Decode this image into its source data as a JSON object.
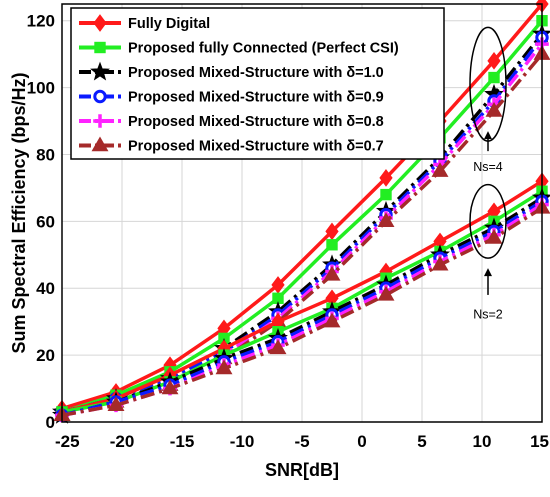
{
  "chart_data": {
    "type": "line",
    "xlabel": "SNR[dB]",
    "ylabel": "Sum Spectral Efficiency (bps/Hz)",
    "xlim": [
      -25,
      15
    ],
    "ylim": [
      0,
      125
    ],
    "xticks": [
      -25,
      -20,
      -15,
      -10,
      -5,
      0,
      5,
      10,
      15
    ],
    "yticks": [
      0,
      20,
      40,
      60,
      80,
      100,
      120
    ],
    "grid": true,
    "legend_position": "top-left",
    "x": [
      -25,
      -20.5,
      -16,
      -11.5,
      -7,
      -2.5,
      2,
      6.5,
      11,
      15
    ],
    "series": [
      {
        "name": "Fully Digital",
        "color": "#ff1a1a",
        "marker": "diamond",
        "dash": "solid",
        "group": "Ns=4",
        "values": [
          4,
          9,
          17,
          28,
          41,
          57,
          73,
          90,
          108,
          125
        ]
      },
      {
        "name": "Proposed fully Connected (Perfect CSI)",
        "color": "#22ee22",
        "marker": "square",
        "dash": "solid",
        "group": "Ns=4",
        "values": [
          3,
          8,
          15,
          25,
          37,
          53,
          68,
          85,
          103,
          120
        ]
      },
      {
        "name": "Proposed Mixed-Structure with δ=1.0",
        "color": "#000000",
        "marker": "star",
        "dash": "dashdot",
        "group": "Ns=4",
        "values": [
          3,
          7,
          13,
          22,
          33,
          47,
          63,
          79,
          98,
          116
        ]
      },
      {
        "name": "Proposed Mixed-Structure with δ=0.9",
        "color": "#0a1aff",
        "marker": "circle",
        "dash": "dashdot",
        "group": "Ns=4",
        "values": [
          3,
          7,
          13,
          21,
          32,
          46,
          62,
          78,
          96,
          115
        ]
      },
      {
        "name": "Proposed Mixed-Structure with δ=0.8",
        "color": "#ff22ff",
        "marker": "plus",
        "dash": "dashdot",
        "group": "Ns=4",
        "values": [
          2,
          6,
          12,
          20,
          31,
          45,
          61,
          77,
          95,
          113
        ]
      },
      {
        "name": "Proposed Mixed-Structure with δ=0.7",
        "color": "#a52a2a",
        "marker": "triangle",
        "dash": "dashdot",
        "group": "Ns=4",
        "values": [
          2,
          6,
          11,
          19,
          30,
          44,
          60,
          75,
          93,
          110
        ]
      },
      {
        "color": "#ff1a1a",
        "marker": "diamond",
        "dash": "solid",
        "group": "Ns=2",
        "values": [
          3,
          7,
          14,
          22,
          30,
          37,
          45,
          54,
          63,
          72
        ]
      },
      {
        "color": "#22ee22",
        "marker": "square",
        "dash": "solid",
        "group": "Ns=2",
        "values": [
          3,
          6,
          12,
          20,
          27,
          34,
          43,
          51,
          60,
          69
        ]
      },
      {
        "color": "#000000",
        "marker": "star",
        "dash": "dashdot",
        "group": "Ns=2",
        "values": [
          2,
          6,
          12,
          19,
          25,
          33,
          41,
          50,
          58,
          67
        ]
      },
      {
        "color": "#0a1aff",
        "marker": "circle",
        "dash": "dashdot",
        "group": "Ns=2",
        "values": [
          2,
          6,
          11,
          18,
          24,
          32,
          40,
          49,
          57,
          66
        ]
      },
      {
        "color": "#ff22ff",
        "marker": "plus",
        "dash": "dashdot",
        "group": "Ns=2",
        "values": [
          2,
          5,
          10,
          17,
          23,
          31,
          39,
          48,
          56,
          65
        ]
      },
      {
        "color": "#a52a2a",
        "marker": "triangle",
        "dash": "dashdot",
        "group": "Ns=2",
        "values": [
          2,
          5,
          10,
          16,
          22,
          30,
          38,
          47,
          55,
          64
        ]
      }
    ],
    "annotations": [
      {
        "text": "Ns=4",
        "ellipse_center": [
          10.5,
          101
        ],
        "ellipse_rx": 1.5,
        "ellipse_ry": 17,
        "arrow_from": [
          10.5,
          81
        ],
        "arrow_to": [
          10.5,
          87
        ],
        "text_at": [
          10.5,
          75
        ]
      },
      {
        "text": "Ns=2",
        "ellipse_center": [
          10.5,
          60
        ],
        "ellipse_rx": 1.5,
        "ellipse_ry": 11,
        "arrow_from": [
          10.5,
          38
        ],
        "arrow_to": [
          10.5,
          46
        ],
        "text_at": [
          10.5,
          31
        ]
      }
    ]
  }
}
